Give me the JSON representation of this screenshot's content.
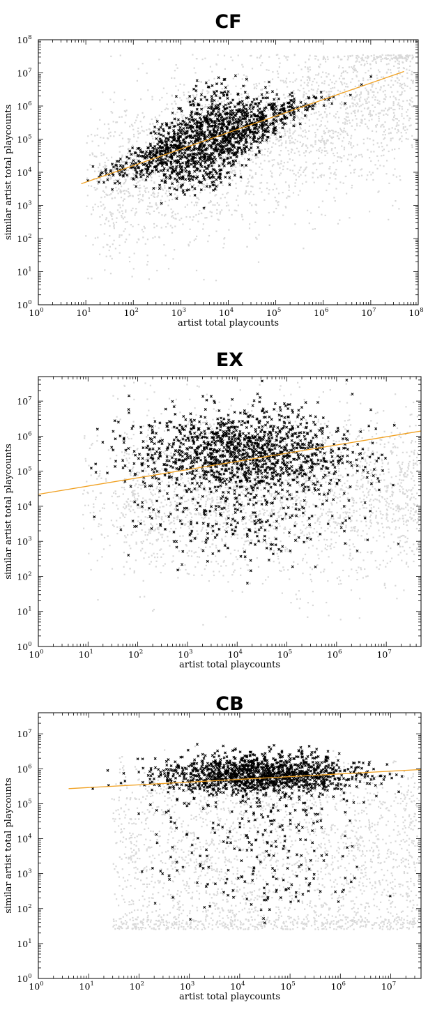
{
  "colors": {
    "background_points": "#d8d8d8",
    "foreground_points": "#000000",
    "fit_line": "#f0a020",
    "axis": "#000000"
  },
  "chart_data": [
    {
      "type": "scatter",
      "title": "CF",
      "xlabel": "artist total playcounts",
      "ylabel": "similar artist total playcounts",
      "xscale": "log",
      "yscale": "log",
      "xlim": [
        1,
        100000000
      ],
      "ylim": [
        1,
        100000000
      ],
      "x_ticks": [
        {
          "base": "10",
          "exp": "0",
          "value": 1
        },
        {
          "base": "10",
          "exp": "1",
          "value": 10
        },
        {
          "base": "10",
          "exp": "2",
          "value": 100
        },
        {
          "base": "10",
          "exp": "3",
          "value": 1000
        },
        {
          "base": "10",
          "exp": "4",
          "value": 10000
        },
        {
          "base": "10",
          "exp": "5",
          "value": 100000
        },
        {
          "base": "10",
          "exp": "6",
          "value": 1000000
        },
        {
          "base": "10",
          "exp": "7",
          "value": 10000000
        },
        {
          "base": "10",
          "exp": "8",
          "value": 100000000
        }
      ],
      "y_ticks": [
        {
          "base": "10",
          "exp": "0",
          "value": 1
        },
        {
          "base": "10",
          "exp": "1",
          "value": 10
        },
        {
          "base": "10",
          "exp": "2",
          "value": 100
        },
        {
          "base": "10",
          "exp": "3",
          "value": 1000
        },
        {
          "base": "10",
          "exp": "4",
          "value": 10000
        },
        {
          "base": "10",
          "exp": "5",
          "value": 100000
        },
        {
          "base": "10",
          "exp": "6",
          "value": 1000000
        },
        {
          "base": "10",
          "exp": "7",
          "value": 10000000
        },
        {
          "base": "10",
          "exp": "8",
          "value": 100000000
        }
      ],
      "fit_line": {
        "x": [
          8,
          50000000
        ],
        "y": [
          4500,
          11000000
        ]
      },
      "background_points": {
        "description_of_extent": "dense grey cloud",
        "x_log_range": [
          0.9,
          7.9
        ],
        "y_log_range": [
          0.6,
          7.5
        ]
      },
      "foreground_points": {
        "x_log_range": [
          0.9,
          7.8
        ],
        "y_log_range": [
          2.5,
          7.0
        ]
      },
      "grid": false,
      "legend": "none"
    },
    {
      "type": "scatter",
      "title": "EX",
      "xlabel": "artist total playcounts",
      "ylabel": "similar artist total playcounts",
      "xscale": "log",
      "yscale": "log",
      "xlim": [
        1,
        50000000
      ],
      "ylim": [
        1,
        50000000
      ],
      "x_ticks": [
        {
          "base": "10",
          "exp": "0",
          "value": 1
        },
        {
          "base": "10",
          "exp": "1",
          "value": 10
        },
        {
          "base": "10",
          "exp": "2",
          "value": 100
        },
        {
          "base": "10",
          "exp": "3",
          "value": 1000
        },
        {
          "base": "10",
          "exp": "4",
          "value": 10000
        },
        {
          "base": "10",
          "exp": "5",
          "value": 100000
        },
        {
          "base": "10",
          "exp": "6",
          "value": 1000000
        },
        {
          "base": "10",
          "exp": "7",
          "value": 10000000
        }
      ],
      "y_ticks": [
        {
          "base": "10",
          "exp": "0",
          "value": 1
        },
        {
          "base": "10",
          "exp": "1",
          "value": 10
        },
        {
          "base": "10",
          "exp": "2",
          "value": 100
        },
        {
          "base": "10",
          "exp": "3",
          "value": 1000
        },
        {
          "base": "10",
          "exp": "4",
          "value": 10000
        },
        {
          "base": "10",
          "exp": "5",
          "value": 100000
        },
        {
          "base": "10",
          "exp": "6",
          "value": 1000000
        },
        {
          "base": "10",
          "exp": "7",
          "value": 10000000
        }
      ],
      "fit_line": {
        "x": [
          1,
          50000000
        ],
        "y": [
          22000,
          1400000
        ]
      },
      "grid": false,
      "legend": "none"
    },
    {
      "type": "scatter",
      "title": "CB",
      "xlabel": "artist total playcounts",
      "ylabel": "similar artist total playcounts",
      "xscale": "log",
      "yscale": "log",
      "xlim": [
        1,
        40000000
      ],
      "ylim": [
        1,
        40000000
      ],
      "x_ticks": [
        {
          "base": "10",
          "exp": "0",
          "value": 1
        },
        {
          "base": "10",
          "exp": "1",
          "value": 10
        },
        {
          "base": "10",
          "exp": "2",
          "value": 100
        },
        {
          "base": "10",
          "exp": "3",
          "value": 1000
        },
        {
          "base": "10",
          "exp": "4",
          "value": 10000
        },
        {
          "base": "10",
          "exp": "5",
          "value": 100000
        },
        {
          "base": "10",
          "exp": "6",
          "value": 1000000
        },
        {
          "base": "10",
          "exp": "7",
          "value": 10000000
        }
      ],
      "y_ticks": [
        {
          "base": "10",
          "exp": "0",
          "value": 1
        },
        {
          "base": "10",
          "exp": "1",
          "value": 10
        },
        {
          "base": "10",
          "exp": "2",
          "value": 100
        },
        {
          "base": "10",
          "exp": "3",
          "value": 1000
        },
        {
          "base": "10",
          "exp": "4",
          "value": 10000
        },
        {
          "base": "10",
          "exp": "5",
          "value": 100000
        },
        {
          "base": "10",
          "exp": "6",
          "value": 1000000
        },
        {
          "base": "10",
          "exp": "7",
          "value": 10000000
        }
      ],
      "fit_line": {
        "x": [
          4,
          40000000
        ],
        "y": [
          270000,
          950000
        ]
      },
      "grid": false,
      "legend": "none"
    }
  ]
}
